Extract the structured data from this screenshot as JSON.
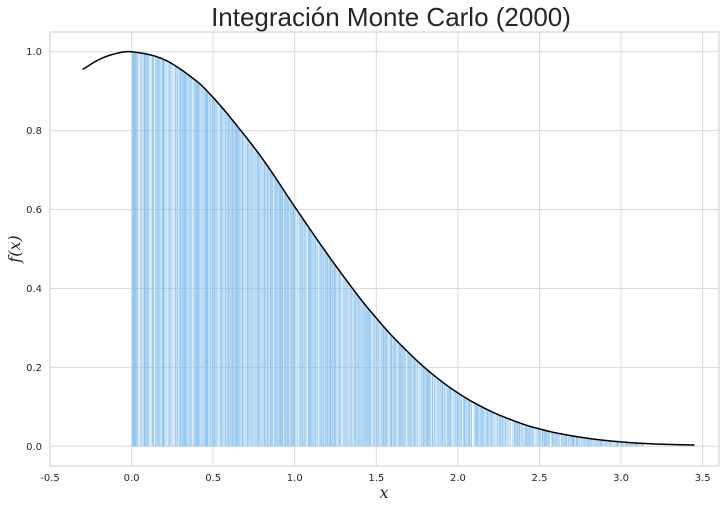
{
  "chart_data": {
    "type": "area",
    "title": "Integración Monte Carlo (2000)",
    "xlabel": "x",
    "ylabel": "f(x)",
    "xlim": [
      -0.5,
      3.6
    ],
    "ylim": [
      -0.05,
      1.05
    ],
    "x_ticks": [
      "-0.5",
      "0.0",
      "0.5",
      "1.0",
      "1.5",
      "2.0",
      "2.5",
      "3.0",
      "3.5"
    ],
    "y_ticks": [
      "0.0",
      "0.2",
      "0.4",
      "0.6",
      "0.8",
      "1.0"
    ],
    "grid": true,
    "series": [
      {
        "kind": "line",
        "x": [
          -0.3,
          -0.2,
          -0.1,
          0.0,
          0.2,
          0.4,
          0.5,
          0.6,
          0.8,
          1.0,
          1.2,
          1.4,
          1.5,
          1.6,
          1.8,
          2.0,
          2.2,
          2.4,
          2.5,
          2.6,
          2.8,
          3.0,
          3.2,
          3.45
        ],
        "y": [
          0.955,
          0.98,
          0.995,
          1.0,
          0.98,
          0.925,
          0.884,
          0.836,
          0.73,
          0.607,
          0.487,
          0.375,
          0.325,
          0.278,
          0.198,
          0.135,
          0.089,
          0.056,
          0.044,
          0.034,
          0.02,
          0.011,
          0.006,
          0.003
        ],
        "color": "#000000"
      },
      {
        "kind": "vertical-lines",
        "points": 2000,
        "x_range": [
          0.0,
          3.14
        ],
        "color": "#82c0ec"
      }
    ]
  }
}
